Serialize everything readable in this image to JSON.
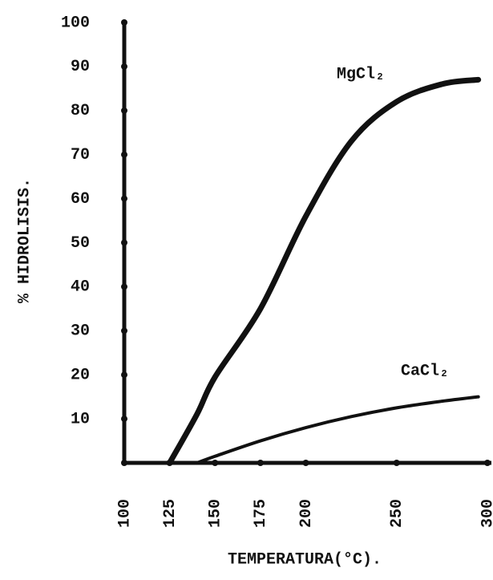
{
  "chart_data": {
    "type": "line",
    "x_label": "TEMPERATURA(°C).",
    "y_label": "% HIDROLISIS.",
    "x": [
      125,
      140,
      150,
      175,
      200,
      225,
      250,
      275,
      295
    ],
    "series": [
      {
        "name": "MgCl₂",
        "color": "#111111",
        "values": [
          0,
          11,
          19.5,
          35,
          56,
          73,
          82,
          86,
          87
        ]
      },
      {
        "name": "CaCl₂",
        "color": "#111111",
        "values": [
          null,
          0,
          1.5,
          5,
          8,
          10.5,
          12.5,
          14,
          15
        ]
      }
    ],
    "xlim": [
      100,
      300
    ],
    "xticks": [
      100,
      125,
      150,
      175,
      200,
      250,
      300
    ],
    "ylim": [
      0,
      100
    ],
    "yticks": [
      10,
      20,
      30,
      40,
      50,
      60,
      70,
      80,
      90,
      100
    ]
  }
}
